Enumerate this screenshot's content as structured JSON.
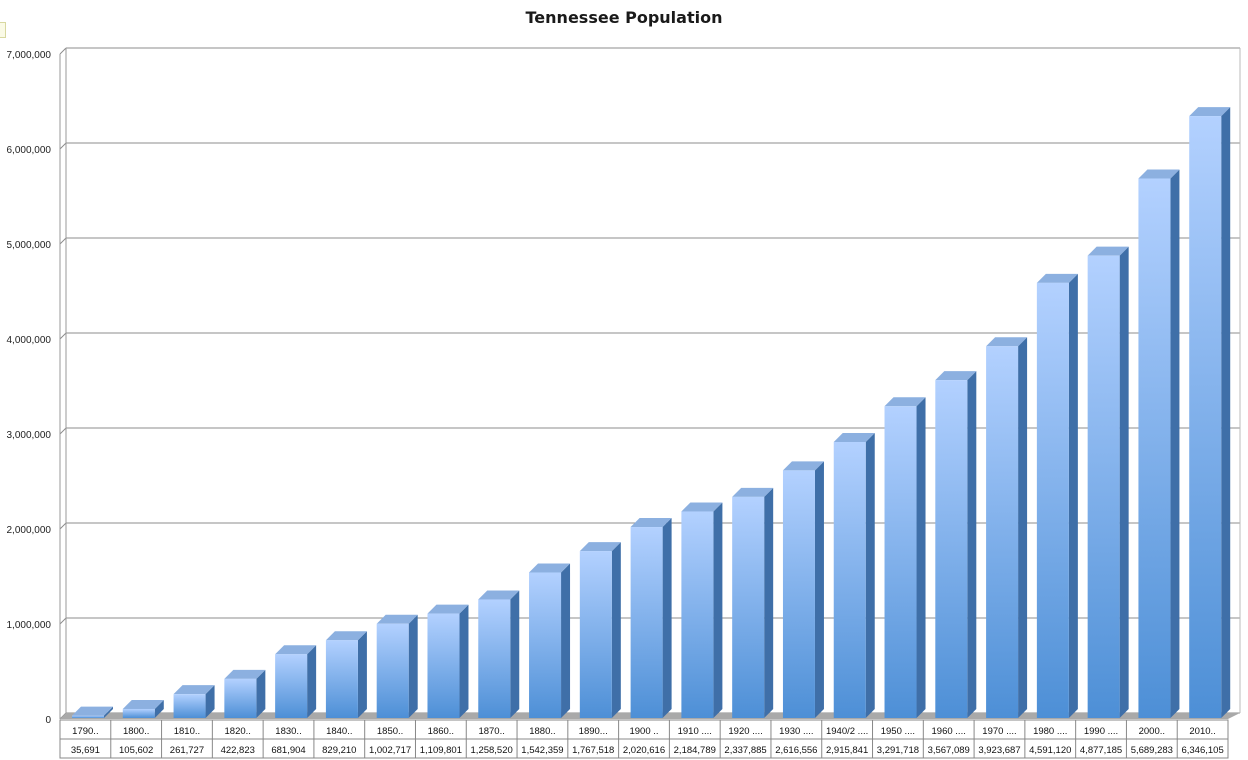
{
  "chart_data": {
    "type": "bar",
    "title": "Tennessee Population",
    "xlabel": "",
    "ylabel": "",
    "ylim": [
      0,
      7000000
    ],
    "y_ticks": [
      "0",
      "1,000,000",
      "2,000,000",
      "3,000,000",
      "4,000,000",
      "5,000,000",
      "6,000,000",
      "7,000,000"
    ],
    "grid": true,
    "style": "3d-column",
    "colors": {
      "bar_top": "#b3d1ff",
      "bar_bottom": "#4d8fd6",
      "bar_side": "#3f6fa8",
      "bar_cap": "#8cb0e0",
      "floor": "#a9a9a9",
      "grid": "#8c8c8c"
    },
    "categories": [
      "1790..",
      "1800..",
      "1810..",
      "1820..",
      "1830..",
      "1840..",
      "1850..",
      "1860..",
      "1870..",
      "1880..",
      "1890...",
      "1900 ..",
      "1910 ....",
      "1920 ....",
      "1930 ....",
      "1940/2 ....",
      "1950 ....",
      "1960 ....",
      "1970 ....",
      "1980 ....",
      "1990 ....",
      "2000..",
      "2010.."
    ],
    "values": [
      35691,
      105602,
      261727,
      422823,
      681904,
      829210,
      1002717,
      1109801,
      1258520,
      1542359,
      1767518,
      2020616,
      2184789,
      2337885,
      2616556,
      2915841,
      3291718,
      3567089,
      3923687,
      4591120,
      4877185,
      5689283,
      6346105
    ],
    "value_labels": [
      "35,691",
      "105,602",
      "261,727",
      "422,823",
      "681,904",
      "829,210",
      "1,002,717",
      "1,109,801",
      "1,258,520",
      "1,542,359",
      "1,767,518",
      "2,020,616",
      "2,184,789",
      "2,337,885",
      "2,616,556",
      "2,915,841",
      "3,291,718",
      "3,567,089",
      "3,923,687",
      "4,591,120",
      "4,877,185",
      "5,689,283",
      "6,346,105"
    ]
  }
}
